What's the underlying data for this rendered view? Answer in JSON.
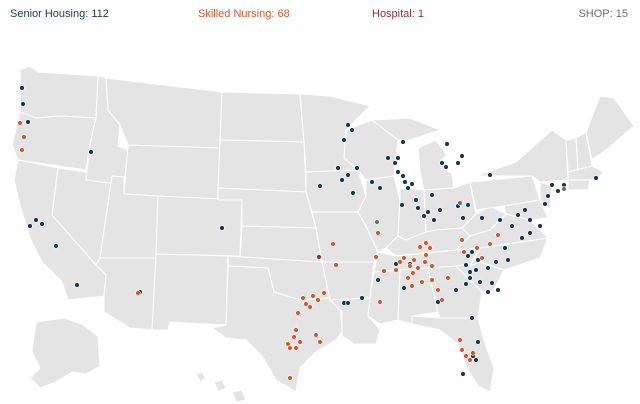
{
  "legend": {
    "senior_housing": "Senior Housing: 112",
    "skilled_nursing": "Skilled Nursing: 68",
    "hospital": "Hospital: 1",
    "shop": "SHOP: 15"
  },
  "colors": {
    "senior_housing": "#163a4a",
    "skilled_nursing": "#cf5a2c",
    "hospital": "#8e3438",
    "shop": "#707070",
    "land": "#e4e4e4",
    "border": "#ffffff"
  },
  "map": {
    "region": "United States (contiguous, Alaska, Hawaii)",
    "markers": {
      "senior_housing": [
        [
          22,
          88
        ],
        [
          23,
          104
        ],
        [
          28,
          122
        ],
        [
          91,
          152
        ],
        [
          348,
          125
        ],
        [
          352,
          130
        ],
        [
          344,
          140
        ],
        [
          348,
          175
        ],
        [
          357,
          168
        ],
        [
          338,
          168
        ],
        [
          320,
          186
        ],
        [
          342,
          180
        ],
        [
          353,
          193
        ],
        [
          372,
          182
        ],
        [
          380,
          188
        ],
        [
          388,
          158
        ],
        [
          395,
          163
        ],
        [
          398,
          172
        ],
        [
          403,
          176
        ],
        [
          405,
          182
        ],
        [
          408,
          188
        ],
        [
          412,
          184
        ],
        [
          403,
          142
        ],
        [
          398,
          158
        ],
        [
          402,
          205
        ],
        [
          416,
          200
        ],
        [
          418,
          208
        ],
        [
          424,
          216
        ],
        [
          428,
          212
        ],
        [
          434,
          220
        ],
        [
          440,
          210
        ],
        [
          442,
          163
        ],
        [
          446,
          167
        ],
        [
          458,
          163
        ],
        [
          462,
          156
        ],
        [
          447,
          144
        ],
        [
          432,
          195
        ],
        [
          458,
          206
        ],
        [
          468,
          205
        ],
        [
          463,
          218
        ],
        [
          490,
          175
        ],
        [
          482,
          218
        ],
        [
          500,
          220
        ],
        [
          505,
          248
        ],
        [
          508,
          260
        ],
        [
          512,
          226
        ],
        [
          518,
          215
        ],
        [
          525,
          210
        ],
        [
          530,
          220
        ],
        [
          522,
          238
        ],
        [
          530,
          233
        ],
        [
          540,
          226
        ],
        [
          545,
          204
        ],
        [
          548,
          196
        ],
        [
          552,
          185
        ],
        [
          558,
          191
        ],
        [
          564,
          185
        ],
        [
          596,
          178
        ],
        [
          36,
          220
        ],
        [
          42,
          224
        ],
        [
          30,
          226
        ],
        [
          56,
          246
        ],
        [
          77,
          285
        ],
        [
          222,
          228
        ],
        [
          140,
          292
        ],
        [
          344,
          303
        ],
        [
          348,
          303
        ],
        [
          362,
          298
        ],
        [
          468,
          256
        ],
        [
          472,
          252
        ],
        [
          478,
          260
        ],
        [
          466,
          265
        ],
        [
          470,
          272
        ],
        [
          476,
          270
        ],
        [
          470,
          278
        ],
        [
          466,
          284
        ],
        [
          480,
          282
        ],
        [
          488,
          268
        ],
        [
          496,
          262
        ],
        [
          492,
          283
        ],
        [
          498,
          290
        ],
        [
          488,
          292
        ],
        [
          456,
          290
        ],
        [
          378,
          280
        ],
        [
          396,
          264
        ],
        [
          410,
          264
        ],
        [
          404,
          288
        ],
        [
          438,
          302
        ],
        [
          472,
          318
        ],
        [
          478,
          342
        ],
        [
          476,
          360
        ],
        [
          473,
          356
        ],
        [
          463,
          374
        ]
      ],
      "skilled_nursing": [
        [
          20,
          123
        ],
        [
          24,
          137
        ],
        [
          22,
          150
        ],
        [
          138,
          293
        ],
        [
          333,
          244
        ],
        [
          336,
          265
        ],
        [
          378,
          233
        ],
        [
          376,
          257
        ],
        [
          384,
          271
        ],
        [
          396,
          270
        ],
        [
          400,
          262
        ],
        [
          404,
          258
        ],
        [
          410,
          266
        ],
        [
          414,
          260
        ],
        [
          418,
          268
        ],
        [
          425,
          262
        ],
        [
          432,
          266
        ],
        [
          426,
          255
        ],
        [
          420,
          247
        ],
        [
          426,
          243
        ],
        [
          430,
          248
        ],
        [
          413,
          273
        ],
        [
          408,
          278
        ],
        [
          412,
          286
        ],
        [
          422,
          282
        ],
        [
          432,
          280
        ],
        [
          438,
          290
        ],
        [
          442,
          300
        ],
        [
          448,
          278
        ],
        [
          462,
          240
        ],
        [
          464,
          252
        ],
        [
          477,
          248
        ],
        [
          482,
          258
        ],
        [
          490,
          244
        ],
        [
          498,
          235
        ],
        [
          303,
          298
        ],
        [
          306,
          304
        ],
        [
          313,
          296
        ],
        [
          310,
          307
        ],
        [
          298,
          313
        ],
        [
          318,
          300
        ],
        [
          324,
          293
        ],
        [
          296,
          330
        ],
        [
          294,
          337
        ],
        [
          300,
          342
        ],
        [
          288,
          344
        ],
        [
          290,
          348
        ],
        [
          296,
          348
        ],
        [
          316,
          335
        ],
        [
          320,
          342
        ],
        [
          290,
          378
        ],
        [
          380,
          302
        ],
        [
          460,
          340
        ],
        [
          462,
          350
        ],
        [
          466,
          356
        ],
        [
          470,
          360
        ],
        [
          473,
          353
        ]
      ],
      "hospital": [
        [
          319,
          257
        ]
      ],
      "shop": [
        [
          377,
          222
        ],
        [
          460,
          203
        ],
        [
          564,
          189
        ]
      ]
    }
  }
}
